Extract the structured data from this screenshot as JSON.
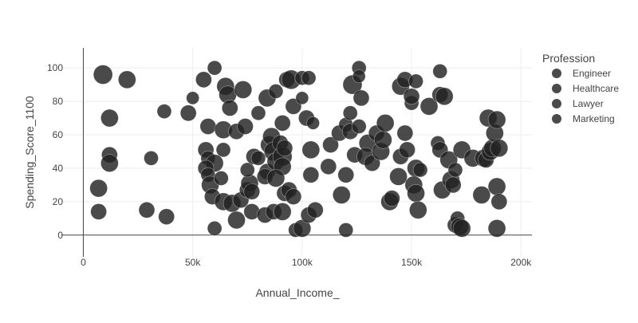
{
  "chart_data": {
    "type": "scatter",
    "title": "",
    "xlabel": "Annual_Income_",
    "ylabel": "Spending_Score_1100",
    "xlim": [
      -10000,
      205000
    ],
    "ylim": [
      -13,
      112
    ],
    "x_ticks": [
      0,
      50000,
      100000,
      150000,
      200000
    ],
    "x_tick_labels": [
      "0",
      "50k",
      "100k",
      "150k",
      "200k"
    ],
    "y_ticks": [
      0,
      20,
      40,
      60,
      80,
      100
    ],
    "y_tick_labels": [
      "0",
      "20",
      "40",
      "60",
      "80",
      "100"
    ],
    "grid": true,
    "marker_color": "#222222",
    "marker_opacity": 0.82,
    "legend": {
      "title": "Profession",
      "placement": "top-right",
      "items": [
        "Engineer",
        "Healthcare",
        "Lawyer",
        "Marketing"
      ]
    },
    "points": [
      [
        9000,
        96,
        12
      ],
      [
        20000,
        93,
        11
      ],
      [
        12000,
        70,
        11
      ],
      [
        37000,
        74,
        9
      ],
      [
        50000,
        82,
        8
      ],
      [
        48000,
        73,
        10
      ],
      [
        60000,
        100,
        9
      ],
      [
        55000,
        93,
        10
      ],
      [
        65000,
        89,
        11
      ],
      [
        66000,
        84,
        11
      ],
      [
        67000,
        76,
        10
      ],
      [
        73000,
        87,
        11
      ],
      [
        80000,
        73,
        9
      ],
      [
        84000,
        82,
        11
      ],
      [
        88000,
        86,
        9
      ],
      [
        93000,
        93,
        10
      ],
      [
        95000,
        93,
        12
      ],
      [
        100000,
        94,
        9
      ],
      [
        103000,
        94,
        9
      ],
      [
        91000,
        67,
        10
      ],
      [
        96000,
        77,
        10
      ],
      [
        100000,
        82,
        8
      ],
      [
        102000,
        70,
        10
      ],
      [
        105000,
        67,
        8
      ],
      [
        57000,
        65,
        10
      ],
      [
        64000,
        63,
        11
      ],
      [
        70000,
        62,
        10
      ],
      [
        74000,
        65,
        10
      ],
      [
        56000,
        51,
        10
      ],
      [
        57000,
        46,
        9
      ],
      [
        60000,
        43,
        11
      ],
      [
        64000,
        51,
        9
      ],
      [
        56000,
        40,
        10
      ],
      [
        57000,
        36,
        9
      ],
      [
        58000,
        30,
        11
      ],
      [
        59000,
        23,
        10
      ],
      [
        63000,
        34,
        9
      ],
      [
        64000,
        20,
        11
      ],
      [
        60000,
        4,
        9
      ],
      [
        12000,
        48,
        10
      ],
      [
        12000,
        43,
        11
      ],
      [
        31000,
        46,
        9
      ],
      [
        7000,
        28,
        11
      ],
      [
        7000,
        14,
        10
      ],
      [
        29000,
        15,
        10
      ],
      [
        38000,
        11,
        10
      ],
      [
        68000,
        19,
        11
      ],
      [
        70000,
        9,
        11
      ],
      [
        72000,
        21,
        10
      ],
      [
        75000,
        27,
        10
      ],
      [
        76000,
        31,
        11
      ],
      [
        77000,
        26,
        10
      ],
      [
        77000,
        14,
        10
      ],
      [
        75000,
        39,
        9
      ],
      [
        78000,
        47,
        10
      ],
      [
        80000,
        46,
        9
      ],
      [
        84000,
        38,
        10
      ],
      [
        83000,
        35,
        10
      ],
      [
        85000,
        54,
        11
      ],
      [
        86000,
        59,
        11
      ],
      [
        87000,
        50,
        12
      ],
      [
        88000,
        44,
        11
      ],
      [
        90000,
        55,
        10
      ],
      [
        91000,
        47,
        12
      ],
      [
        91000,
        41,
        11
      ],
      [
        92000,
        52,
        10
      ],
      [
        88000,
        34,
        11
      ],
      [
        92000,
        25,
        10
      ],
      [
        83000,
        12,
        10
      ],
      [
        87000,
        14,
        10
      ],
      [
        91000,
        14,
        11
      ],
      [
        94000,
        27,
        10
      ],
      [
        96000,
        23,
        10
      ],
      [
        97000,
        3,
        9
      ],
      [
        100000,
        4,
        11
      ],
      [
        103000,
        12,
        10
      ],
      [
        106000,
        15,
        10
      ],
      [
        104000,
        36,
        10
      ],
      [
        104000,
        51,
        11
      ],
      [
        112000,
        41,
        10
      ],
      [
        113000,
        54,
        10
      ],
      [
        117000,
        61,
        10
      ],
      [
        120000,
        66,
        9
      ],
      [
        118000,
        24,
        11
      ],
      [
        120000,
        36,
        10
      ],
      [
        120000,
        3,
        9
      ],
      [
        122000,
        73,
        9
      ],
      [
        123000,
        90,
        12
      ],
      [
        126000,
        100,
        9
      ],
      [
        126000,
        95,
        8
      ],
      [
        127000,
        82,
        10
      ],
      [
        122000,
        62,
        10
      ],
      [
        124000,
        48,
        10
      ],
      [
        126000,
        65,
        9
      ],
      [
        130000,
        55,
        11
      ],
      [
        129000,
        47,
        11
      ],
      [
        132000,
        43,
        10
      ],
      [
        134000,
        61,
        10
      ],
      [
        136000,
        50,
        11
      ],
      [
        137000,
        57,
        11
      ],
      [
        138000,
        67,
        11
      ],
      [
        140000,
        20,
        11
      ],
      [
        141000,
        22,
        10
      ],
      [
        144000,
        35,
        11
      ],
      [
        145000,
        47,
        10
      ],
      [
        147000,
        61,
        10
      ],
      [
        148000,
        51,
        10
      ],
      [
        145000,
        89,
        11
      ],
      [
        147000,
        93,
        10
      ],
      [
        150000,
        79,
        9
      ],
      [
        152000,
        92,
        9
      ],
      [
        150000,
        83,
        10
      ],
      [
        152000,
        40,
        11
      ],
      [
        154000,
        39,
        9
      ],
      [
        151000,
        30,
        11
      ],
      [
        152000,
        25,
        11
      ],
      [
        153000,
        15,
        11
      ],
      [
        158000,
        77,
        11
      ],
      [
        162000,
        55,
        9
      ],
      [
        163000,
        51,
        10
      ],
      [
        163000,
        98,
        9
      ],
      [
        163000,
        84,
        10
      ],
      [
        165000,
        83,
        11
      ],
      [
        164000,
        27,
        11
      ],
      [
        167000,
        45,
        11
      ],
      [
        168000,
        33,
        11
      ],
      [
        169000,
        30,
        10
      ],
      [
        170000,
        39,
        9
      ],
      [
        170000,
        6,
        10
      ],
      [
        171000,
        10,
        9
      ],
      [
        172000,
        5,
        11
      ],
      [
        173000,
        51,
        11
      ],
      [
        173000,
        4,
        11
      ],
      [
        178000,
        46,
        11
      ],
      [
        182000,
        24,
        11
      ],
      [
        183000,
        46,
        11
      ],
      [
        184000,
        45,
        10
      ],
      [
        185000,
        70,
        11
      ],
      [
        186000,
        50,
        11
      ],
      [
        187000,
        52,
        11
      ],
      [
        188000,
        61,
        11
      ],
      [
        189000,
        69,
        11
      ],
      [
        189000,
        29,
        11
      ],
      [
        190000,
        52,
        11
      ],
      [
        189000,
        4,
        11
      ],
      [
        190000,
        20,
        10
      ]
    ]
  }
}
